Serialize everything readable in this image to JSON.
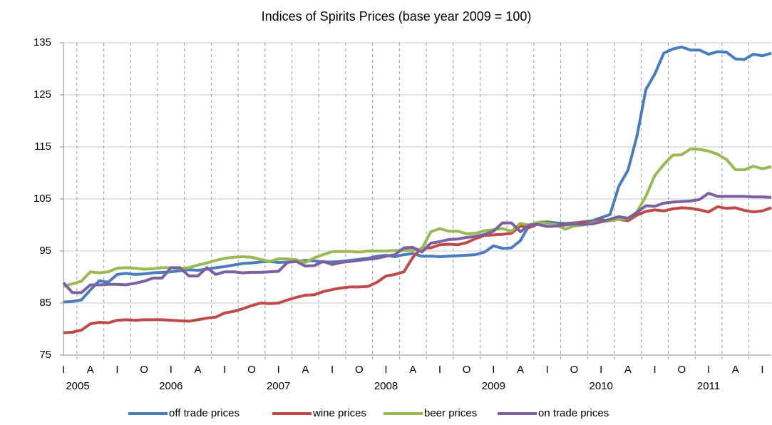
{
  "chart_data": {
    "type": "line",
    "title": "Indices of Spirits Prices (base year 2009 = 100)",
    "categories": [
      "I",
      null,
      null,
      "A",
      null,
      null,
      "I",
      null,
      null,
      "O",
      null,
      null,
      "I",
      null,
      null,
      "A",
      null,
      null,
      "I",
      null,
      null,
      "O",
      null,
      null,
      "I",
      null,
      null,
      "A",
      null,
      null,
      "I",
      null,
      null,
      "O",
      null,
      null,
      "I",
      null,
      null,
      "A",
      null,
      null,
      "I",
      null,
      null,
      "O",
      null,
      null,
      "I",
      null,
      null,
      "A",
      null,
      null,
      "I",
      null,
      null,
      "O",
      null,
      null,
      "I",
      null,
      null,
      "A",
      null,
      null,
      "I",
      null,
      null,
      "O",
      null,
      null,
      "I",
      null,
      null,
      "A",
      null,
      null,
      "I",
      null
    ],
    "category_years": [
      "2005",
      null,
      null,
      null,
      null,
      null,
      null,
      null,
      null,
      null,
      null,
      null,
      "2006",
      null,
      null,
      null,
      null,
      null,
      null,
      null,
      null,
      null,
      null,
      null,
      "2007",
      null,
      null,
      null,
      null,
      null,
      null,
      null,
      null,
      null,
      null,
      null,
      "2008",
      null,
      null,
      null,
      null,
      null,
      null,
      null,
      null,
      null,
      null,
      null,
      "2009",
      null,
      null,
      null,
      null,
      null,
      null,
      null,
      null,
      null,
      null,
      null,
      "2010",
      null,
      null,
      null,
      null,
      null,
      null,
      null,
      null,
      null,
      null,
      null,
      "2011",
      null,
      null,
      null,
      null,
      null,
      null,
      null
    ],
    "series": [
      {
        "name": "off trade prices",
        "color": "#4a7ebb",
        "values": [
          85.2,
          85.3,
          85.6,
          87.5,
          89.3,
          89.0,
          90.5,
          90.7,
          90.5,
          90.6,
          90.8,
          90.9,
          91.0,
          91.2,
          91.4,
          91.3,
          91.5,
          91.8,
          92.0,
          92.3,
          92.6,
          92.7,
          92.9,
          93.0,
          92.8,
          92.9,
          93.0,
          93.2,
          93.1,
          92.9,
          92.9,
          93.0,
          93.2,
          93.4,
          93.6,
          94.0,
          94.2,
          93.9,
          94.3,
          94.5,
          94.0,
          94.0,
          93.9,
          94.0,
          94.1,
          94.2,
          94.3,
          94.8,
          96.0,
          95.5,
          95.6,
          97.0,
          100.0,
          100.5,
          100.6,
          100.4,
          100.3,
          100.4,
          100.6,
          100.8,
          101.4,
          102.0,
          107.5,
          110.5,
          117.0,
          126.0,
          129.0,
          133.0,
          133.8,
          134.2,
          133.6,
          133.6,
          132.8,
          133.3,
          133.2,
          131.9,
          131.8,
          132.8,
          132.5,
          133.0
        ]
      },
      {
        "name": "wine prices",
        "color": "#be4b48",
        "values": [
          79.3,
          79.4,
          79.8,
          81.0,
          81.3,
          81.2,
          81.7,
          81.8,
          81.7,
          81.8,
          81.8,
          81.8,
          81.7,
          81.6,
          81.5,
          81.8,
          82.1,
          82.3,
          83.1,
          83.4,
          83.9,
          84.5,
          85.0,
          84.9,
          85.0,
          85.6,
          86.1,
          86.5,
          86.6,
          87.2,
          87.6,
          87.9,
          88.1,
          88.1,
          88.2,
          89.0,
          90.2,
          90.5,
          91.0,
          93.8,
          95.6,
          95.6,
          96.2,
          96.3,
          96.2,
          96.6,
          97.4,
          98.0,
          98.1,
          98.2,
          98.4,
          99.8,
          99.5,
          100.2,
          100.4,
          100.0,
          100.1,
          100.3,
          100.5,
          100.4,
          101.0,
          100.8,
          101.1,
          100.8,
          101.9,
          102.6,
          102.9,
          102.7,
          103.1,
          103.3,
          103.2,
          102.9,
          102.5,
          103.5,
          103.2,
          103.3,
          102.8,
          102.5,
          102.7,
          103.3
        ]
      },
      {
        "name": "beer prices",
        "color": "#98b954",
        "values": [
          88.2,
          88.7,
          89.2,
          91.0,
          90.8,
          91.0,
          91.7,
          91.8,
          91.7,
          91.5,
          91.6,
          91.8,
          91.8,
          91.6,
          91.8,
          92.3,
          92.7,
          93.2,
          93.6,
          93.8,
          93.9,
          93.8,
          93.4,
          93.0,
          93.5,
          93.5,
          93.3,
          92.8,
          93.7,
          94.3,
          94.9,
          94.9,
          94.9,
          94.8,
          95.0,
          95.0,
          95.0,
          95.1,
          95.1,
          95.1,
          95.4,
          98.7,
          99.3,
          98.8,
          98.8,
          98.3,
          98.4,
          98.9,
          99.1,
          99.3,
          98.8,
          100.3,
          100.0,
          100.5,
          100.3,
          100.0,
          99.2,
          99.8,
          100.0,
          100.4,
          100.6,
          100.8,
          101.1,
          101.2,
          102.5,
          105.5,
          109.5,
          111.6,
          113.4,
          113.5,
          114.6,
          114.5,
          114.2,
          113.6,
          112.6,
          110.6,
          110.6,
          111.3,
          110.8,
          111.2
        ]
      },
      {
        "name": "on trade prices",
        "color": "#7d60a0",
        "values": [
          88.9,
          87.0,
          87.0,
          88.5,
          88.5,
          88.6,
          88.6,
          88.5,
          88.8,
          89.2,
          89.8,
          89.8,
          91.8,
          91.8,
          90.2,
          90.2,
          91.8,
          90.5,
          91.0,
          91.0,
          90.8,
          90.9,
          90.9,
          91.0,
          91.1,
          92.8,
          93.0,
          92.1,
          92.2,
          93.0,
          92.4,
          92.8,
          93.0,
          93.2,
          93.4,
          93.6,
          94.0,
          94.3,
          95.6,
          95.7,
          94.8,
          96.5,
          96.8,
          97.2,
          97.3,
          97.6,
          97.8,
          98.2,
          98.8,
          100.4,
          100.4,
          98.7,
          100.0,
          100.1,
          99.7,
          99.8,
          100.0,
          100.2,
          100.1,
          100.2,
          100.6,
          101.1,
          101.6,
          101.3,
          102.4,
          103.7,
          103.6,
          104.2,
          104.4,
          104.5,
          104.6,
          104.9,
          106.1,
          105.5,
          105.5,
          105.5,
          105.5,
          105.4,
          105.4,
          105.3
        ]
      }
    ],
    "ylim": [
      75,
      135
    ],
    "yticks": [
      75,
      85,
      95,
      105,
      115,
      125,
      135
    ],
    "grid": true,
    "legend": "bottom"
  }
}
